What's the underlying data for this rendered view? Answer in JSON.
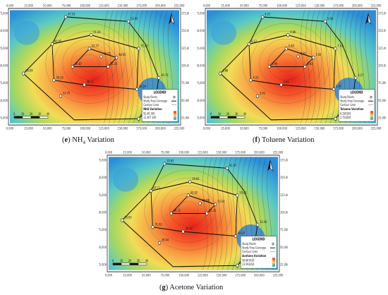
{
  "panels": [
    {
      "id": "e",
      "caption_letter": "e",
      "caption_pre": "NH",
      "caption_sub": "4",
      "caption_post": " Variation",
      "x_ticks": [
        "0,000",
        "25,000",
        "50,000",
        "75,000",
        "100,000",
        "125,000",
        "150,000",
        "175,000",
        "200,000",
        "225,000"
      ],
      "y_ticks": [
        "175,000",
        "150,000",
        "125,000",
        "100,000",
        "75,000",
        "50,000",
        "25,000"
      ],
      "legend": {
        "title": "LEGEND",
        "items": [
          "Study Points",
          "Study Area Coverage",
          "Contour Lines"
        ],
        "variation_title": "NH4 Variation",
        "high": "92.49 190",
        "low": "11.267 240"
      },
      "scalebar_labels": [
        "0",
        "10",
        "20",
        "30",
        "40"
      ],
      "point_labels": [
        "47.53",
        "53.05",
        "51.20",
        "60.95",
        "52.77",
        "63.55",
        "68.05",
        "71.93",
        "46.87",
        "65.25",
        "36.09",
        "39.33",
        "40.73",
        "48.11",
        "38.19",
        "41.93",
        "33.75",
        "28.54"
      ]
    },
    {
      "id": "f",
      "caption_letter": "f",
      "caption_pre": "Toluene",
      "caption_sub": "",
      "caption_post": " Variation",
      "x_ticks": [
        "0,000",
        "25,000",
        "50,000",
        "75,000",
        "100,000",
        "125,000",
        "150,000",
        "175,000",
        "200,000",
        "225,000"
      ],
      "y_ticks": [
        "175,000",
        "150,000",
        "125,000",
        "100,000",
        "75,000",
        "50,000",
        "25,000"
      ],
      "legend": {
        "title": "LEGEND",
        "items": [
          "Study Points",
          "Study Area Coverage",
          "Contour Lines"
        ],
        "variation_title": "Toluene Variation",
        "high": "8.250265",
        "low": "2.753839"
      },
      "scalebar_labels": [
        "0",
        "10",
        "20",
        "30",
        "40"
      ],
      "point_labels": [
        "4.21",
        "5.06",
        "4.86",
        "6.12",
        "5.40",
        "6.55",
        "7.02",
        "7.41",
        "4.99",
        "6.83",
        "3.88",
        "4.15",
        "4.27",
        "4.93",
        "3.97",
        "4.35",
        "3.62",
        "3.21"
      ]
    },
    {
      "id": "g",
      "caption_letter": "g",
      "caption_pre": "Acetone",
      "caption_sub": "",
      "caption_post": " Variation",
      "x_ticks": [
        "0,000",
        "25,000",
        "50,000",
        "75,000",
        "100,000",
        "125,000",
        "150,000",
        "175,000",
        "200,000",
        "225,000"
      ],
      "y_ticks": [
        "175,000",
        "150,000",
        "125,000",
        "100,000",
        "75,000",
        "50,000",
        "25,000"
      ],
      "legend": {
        "title": "LEGEND",
        "items": [
          "Study Points",
          "Study Area Coverage",
          "Contour Lines"
        ],
        "variation_title": "Acetone Variation",
        "high": "56.667416",
        "low": "23.593354"
      },
      "scalebar_labels": [
        "0",
        "10",
        "20",
        "30",
        "40"
      ],
      "point_labels": [
        "35.62",
        "41.07",
        "39.85",
        "47.11",
        "45.02",
        "49.88",
        "53.14",
        "55.61",
        "38.72",
        "51.25",
        "29.93",
        "31.02",
        "32.45",
        "36.80",
        "30.37",
        "33.50",
        "28.04",
        "24.94"
      ]
    }
  ]
}
